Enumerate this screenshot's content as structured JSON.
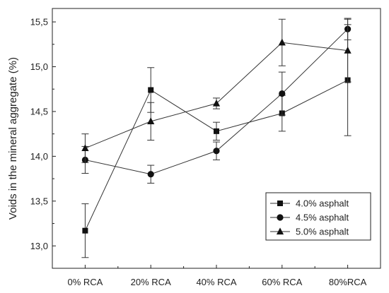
{
  "chart_data": {
    "type": "line",
    "title": "",
    "xlabel": "",
    "ylabel": "Voids in the mineral aggregate (%)",
    "categories": [
      "0% RCA",
      "20% RCA",
      "40% RCA",
      "60% RCA",
      "80%RCA"
    ],
    "ylim": [
      12.75,
      15.65
    ],
    "yticks": [
      "13,0",
      "13,5",
      "14,0",
      "14,5",
      "15,0",
      "15,5"
    ],
    "ytick_values": [
      13.0,
      13.5,
      14.0,
      14.5,
      15.0,
      15.5
    ],
    "grid": false,
    "legend_position": "bottom-right",
    "series": [
      {
        "name": "4.0% asphalt",
        "marker": "square",
        "values": [
          13.17,
          14.74,
          14.28,
          14.48,
          14.85
        ],
        "error": [
          0.3,
          0.25,
          0.1,
          0.2,
          0.62
        ]
      },
      {
        "name": "4.5% asphalt",
        "marker": "circle",
        "values": [
          13.96,
          13.8,
          14.06,
          14.7,
          15.42
        ],
        "error": [
          0.15,
          0.1,
          0.1,
          0.24,
          0.12
        ]
      },
      {
        "name": "5.0% asphalt",
        "marker": "triangle",
        "values": [
          14.09,
          14.39,
          14.59,
          15.27,
          15.18
        ],
        "error": [
          0.16,
          0.21,
          0.06,
          0.26,
          0.35
        ]
      }
    ]
  }
}
